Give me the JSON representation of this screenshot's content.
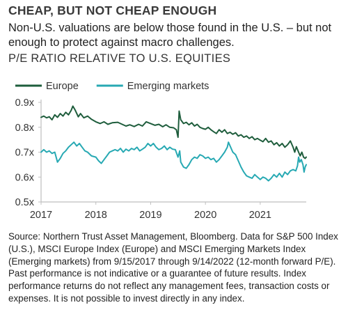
{
  "headline": "CHEAP, BUT NOT CHEAP ENOUGH",
  "subtitle": "Non-U.S. valuations are below those found in the U.S. – but not enough to protect against macro challenges.",
  "chart_title": "P/E RATIO RELATIVE TO U.S. EQUITIES",
  "source_note": "Source: Northern Trust Asset Management, Bloomberg. Data for S&P 500 Index (U.S.), MSCI Europe Index (Europe) and MSCI Emerging Markets Index (Emerging markets) from 9/15/2017 through 9/14/2022 (12-month forward P/E). Past performance is not indicative or a guarantee of future results. Index performance returns do not reflect any management fees, transaction costs or expenses. It is not possible to invest directly in any index.",
  "colors": {
    "europe": "#1e5d3c",
    "emerging": "#27a9b3",
    "axis": "#bfbfbf"
  },
  "chart_data": {
    "type": "line",
    "title": "P/E RATIO RELATIVE TO U.S. EQUITIES",
    "xlabel": "",
    "ylabel": "",
    "xlim": [
      2017,
      2021.84
    ],
    "ylim": [
      0.5,
      0.9
    ],
    "x_ticks": [
      2017,
      2018,
      2019,
      2020,
      2021
    ],
    "x_tick_labels": [
      "2017",
      "2018",
      "2019",
      "2020",
      "2021"
    ],
    "y_ticks": [
      0.5,
      0.6,
      0.7,
      0.8,
      0.9
    ],
    "y_tick_labels": [
      "0.5x",
      "0.6x",
      "0.7x",
      "0.8x",
      "0.9x"
    ],
    "grid": false,
    "legend_position": "top-left",
    "series": [
      {
        "name": "Europe",
        "color": "#1e5d3c",
        "points": [
          [
            2017.0,
            0.84
          ],
          [
            2017.05,
            0.845
          ],
          [
            2017.1,
            0.838
          ],
          [
            2017.15,
            0.842
          ],
          [
            2017.2,
            0.83
          ],
          [
            2017.25,
            0.85
          ],
          [
            2017.3,
            0.84
          ],
          [
            2017.35,
            0.855
          ],
          [
            2017.4,
            0.845
          ],
          [
            2017.45,
            0.86
          ],
          [
            2017.5,
            0.85
          ],
          [
            2017.55,
            0.868
          ],
          [
            2017.58,
            0.885
          ],
          [
            2017.62,
            0.87
          ],
          [
            2017.68,
            0.842
          ],
          [
            2017.72,
            0.855
          ],
          [
            2017.78,
            0.838
          ],
          [
            2017.85,
            0.845
          ],
          [
            2017.92,
            0.832
          ],
          [
            2018.0,
            0.822
          ],
          [
            2018.08,
            0.815
          ],
          [
            2018.15,
            0.822
          ],
          [
            2018.22,
            0.812
          ],
          [
            2018.3,
            0.818
          ],
          [
            2018.4,
            0.82
          ],
          [
            2018.48,
            0.812
          ],
          [
            2018.55,
            0.805
          ],
          [
            2018.62,
            0.81
          ],
          [
            2018.7,
            0.803
          ],
          [
            2018.78,
            0.812
          ],
          [
            2018.85,
            0.805
          ],
          [
            2018.92,
            0.822
          ],
          [
            2019.0,
            0.815
          ],
          [
            2019.08,
            0.808
          ],
          [
            2019.15,
            0.812
          ],
          [
            2019.22,
            0.802
          ],
          [
            2019.28,
            0.81
          ],
          [
            2019.35,
            0.8
          ],
          [
            2019.42,
            0.798
          ],
          [
            2019.47,
            0.79
          ],
          [
            2019.5,
            0.76
          ],
          [
            2019.52,
            0.865
          ],
          [
            2019.55,
            0.83
          ],
          [
            2019.6,
            0.815
          ],
          [
            2019.65,
            0.82
          ],
          [
            2019.7,
            0.81
          ],
          [
            2019.75,
            0.818
          ],
          [
            2019.8,
            0.805
          ],
          [
            2019.85,
            0.812
          ],
          [
            2019.9,
            0.8
          ],
          [
            2019.95,
            0.795
          ],
          [
            2020.0,
            0.792
          ],
          [
            2020.05,
            0.8
          ],
          [
            2020.1,
            0.79
          ],
          [
            2020.15,
            0.782
          ],
          [
            2020.2,
            0.775
          ],
          [
            2020.25,
            0.79
          ],
          [
            2020.3,
            0.78
          ],
          [
            2020.35,
            0.79
          ],
          [
            2020.4,
            0.775
          ],
          [
            2020.45,
            0.78
          ],
          [
            2020.5,
            0.772
          ],
          [
            2020.55,
            0.778
          ],
          [
            2020.6,
            0.765
          ],
          [
            2020.65,
            0.77
          ],
          [
            2020.7,
            0.76
          ],
          [
            2020.75,
            0.765
          ],
          [
            2020.8,
            0.755
          ],
          [
            2020.85,
            0.762
          ],
          [
            2020.9,
            0.75
          ],
          [
            2020.95,
            0.755
          ],
          [
            2021.0,
            0.748
          ],
          [
            2021.05,
            0.742
          ],
          [
            2021.1,
            0.755
          ],
          [
            2021.15,
            0.74
          ],
          [
            2021.2,
            0.745
          ],
          [
            2021.25,
            0.73
          ],
          [
            2021.3,
            0.738
          ],
          [
            2021.35,
            0.725
          ],
          [
            2021.4,
            0.735
          ],
          [
            2021.45,
            0.72
          ],
          [
            2021.5,
            0.73
          ],
          [
            2021.55,
            0.745
          ],
          [
            2021.6,
            0.72
          ],
          [
            2021.63,
            0.7
          ],
          [
            2021.66,
            0.722
          ],
          [
            2021.7,
            0.7
          ],
          [
            2021.73,
            0.685
          ],
          [
            2021.76,
            0.7
          ],
          [
            2021.79,
            0.68
          ],
          [
            2021.82,
            0.675
          ],
          [
            2021.84,
            0.68
          ]
        ]
      },
      {
        "name": "Emerging markets",
        "color": "#27a9b3",
        "points": [
          [
            2017.0,
            0.7
          ],
          [
            2017.05,
            0.71
          ],
          [
            2017.1,
            0.7
          ],
          [
            2017.15,
            0.705
          ],
          [
            2017.2,
            0.695
          ],
          [
            2017.25,
            0.7
          ],
          [
            2017.3,
            0.66
          ],
          [
            2017.35,
            0.675
          ],
          [
            2017.4,
            0.695
          ],
          [
            2017.45,
            0.705
          ],
          [
            2017.5,
            0.72
          ],
          [
            2017.55,
            0.73
          ],
          [
            2017.6,
            0.74
          ],
          [
            2017.65,
            0.725
          ],
          [
            2017.7,
            0.735
          ],
          [
            2017.75,
            0.72
          ],
          [
            2017.8,
            0.705
          ],
          [
            2017.85,
            0.7
          ],
          [
            2017.92,
            0.685
          ],
          [
            2018.0,
            0.68
          ],
          [
            2018.05,
            0.665
          ],
          [
            2018.1,
            0.655
          ],
          [
            2018.15,
            0.67
          ],
          [
            2018.2,
            0.685
          ],
          [
            2018.25,
            0.7
          ],
          [
            2018.3,
            0.705
          ],
          [
            2018.35,
            0.71
          ],
          [
            2018.4,
            0.705
          ],
          [
            2018.45,
            0.715
          ],
          [
            2018.5,
            0.7
          ],
          [
            2018.55,
            0.712
          ],
          [
            2018.6,
            0.705
          ],
          [
            2018.65,
            0.715
          ],
          [
            2018.7,
            0.71
          ],
          [
            2018.75,
            0.72
          ],
          [
            2018.8,
            0.705
          ],
          [
            2018.85,
            0.712
          ],
          [
            2018.9,
            0.72
          ],
          [
            2018.95,
            0.735
          ],
          [
            2019.0,
            0.725
          ],
          [
            2019.05,
            0.735
          ],
          [
            2019.1,
            0.72
          ],
          [
            2019.15,
            0.71
          ],
          [
            2019.2,
            0.715
          ],
          [
            2019.25,
            0.725
          ],
          [
            2019.3,
            0.71
          ],
          [
            2019.35,
            0.72
          ],
          [
            2019.4,
            0.712
          ],
          [
            2019.45,
            0.71
          ],
          [
            2019.5,
            0.68
          ],
          [
            2019.53,
            0.705
          ],
          [
            2019.55,
            0.66
          ],
          [
            2019.6,
            0.64
          ],
          [
            2019.65,
            0.635
          ],
          [
            2019.7,
            0.65
          ],
          [
            2019.75,
            0.67
          ],
          [
            2019.8,
            0.68
          ],
          [
            2019.85,
            0.675
          ],
          [
            2019.9,
            0.69
          ],
          [
            2019.95,
            0.685
          ],
          [
            2020.0,
            0.675
          ],
          [
            2020.05,
            0.68
          ],
          [
            2020.1,
            0.67
          ],
          [
            2020.15,
            0.675
          ],
          [
            2020.2,
            0.66
          ],
          [
            2020.25,
            0.67
          ],
          [
            2020.3,
            0.685
          ],
          [
            2020.35,
            0.7
          ],
          [
            2020.4,
            0.72
          ],
          [
            2020.42,
            0.74
          ],
          [
            2020.44,
            0.73
          ],
          [
            2020.5,
            0.7
          ],
          [
            2020.55,
            0.69
          ],
          [
            2020.6,
            0.665
          ],
          [
            2020.65,
            0.64
          ],
          [
            2020.7,
            0.62
          ],
          [
            2020.75,
            0.605
          ],
          [
            2020.8,
            0.6
          ],
          [
            2020.85,
            0.595
          ],
          [
            2020.9,
            0.61
          ],
          [
            2020.95,
            0.6
          ],
          [
            2021.0,
            0.59
          ],
          [
            2021.05,
            0.6
          ],
          [
            2021.1,
            0.595
          ],
          [
            2021.15,
            0.585
          ],
          [
            2021.2,
            0.595
          ],
          [
            2021.25,
            0.61
          ],
          [
            2021.3,
            0.6
          ],
          [
            2021.35,
            0.615
          ],
          [
            2021.4,
            0.6
          ],
          [
            2021.45,
            0.62
          ],
          [
            2021.5,
            0.61
          ],
          [
            2021.55,
            0.625
          ],
          [
            2021.6,
            0.63
          ],
          [
            2021.65,
            0.625
          ],
          [
            2021.68,
            0.645
          ],
          [
            2021.7,
            0.68
          ],
          [
            2021.72,
            0.66
          ],
          [
            2021.75,
            0.67
          ],
          [
            2021.78,
            0.65
          ],
          [
            2021.8,
            0.62
          ],
          [
            2021.82,
            0.64
          ],
          [
            2021.84,
            0.65
          ]
        ]
      }
    ]
  }
}
